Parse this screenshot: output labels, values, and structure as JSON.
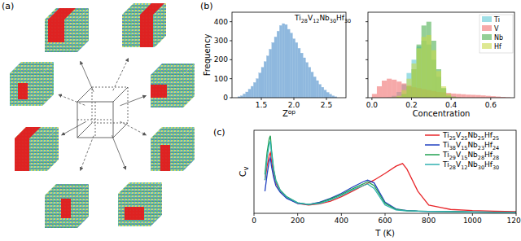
{
  "panel_labels": [
    "(a)",
    "(b)",
    "(c)"
  ],
  "chart_data": [
    {
      "type": "histogram",
      "title": "Ti28V12Nb30Hf30",
      "x_label": "Zop",
      "y_label": "Frequency",
      "color": "#8fb8de",
      "bins": [
        1.14,
        1.18,
        1.22,
        1.26,
        1.3,
        1.34,
        1.38,
        1.42,
        1.46,
        1.5,
        1.54,
        1.58,
        1.62,
        1.66,
        1.7,
        1.74,
        1.78,
        1.82,
        1.86,
        1.9,
        1.94,
        1.98,
        2.02,
        2.06,
        2.1,
        2.14,
        2.18,
        2.22,
        2.26,
        2.3,
        2.34,
        2.38,
        2.42,
        2.46,
        2.5,
        2.54,
        2.58,
        2.62,
        2.66
      ],
      "values": [
        5,
        10,
        20,
        30,
        45,
        60,
        80,
        100,
        130,
        160,
        190,
        220,
        255,
        290,
        320,
        350,
        380,
        390,
        385,
        360,
        340,
        310,
        290,
        260,
        235,
        210,
        185,
        160,
        135,
        110,
        90,
        70,
        55,
        40,
        28,
        18,
        10,
        5
      ],
      "xlim": [
        1.05,
        2.8
      ],
      "xticks": [
        1.5,
        {
          "value": 2,
          "label": "2.0"
        },
        2.5
      ],
      "ylim": [
        0,
        450
      ],
      "yticks": [
        0,
        100,
        200,
        300,
        400
      ]
    },
    {
      "type": "histogram",
      "x_label": "Concentration",
      "legend": "upper right",
      "tick_labels": "x",
      "bins": [
        0,
        0.025,
        0.05,
        0.075,
        0.1,
        0.125,
        0.15,
        0.175,
        0.2,
        0.225,
        0.25,
        0.275,
        0.3,
        0.325,
        0.35,
        0.375,
        0.4,
        0.425,
        0.45,
        0.475,
        0.5,
        0.525,
        0.55,
        0.575,
        0.6,
        0.625,
        0.65,
        0.675,
        0.7
      ],
      "series": [
        {
          "name": "Ti",
          "color": "#5ec8d4",
          "values": [
            0,
            0,
            0,
            2,
            10,
            30,
            70,
            130,
            200,
            270,
            300,
            280,
            200,
            110,
            50,
            20,
            8,
            2,
            0,
            0,
            0,
            0,
            0,
            0,
            0,
            0,
            0,
            0
          ]
        },
        {
          "name": "V",
          "color": "#f07070",
          "values": [
            20,
            60,
            90,
            100,
            95,
            85,
            75,
            65,
            55,
            50,
            45,
            40,
            35,
            30,
            28,
            25,
            22,
            20,
            18,
            16,
            15,
            14,
            12,
            10,
            8,
            6,
            4,
            2
          ]
        },
        {
          "name": "Nb",
          "color": "#4caf50",
          "values": [
            0,
            0,
            0,
            0,
            0,
            5,
            20,
            60,
            150,
            280,
            380,
            400,
            300,
            150,
            50,
            10,
            2,
            0,
            0,
            0,
            0,
            0,
            0,
            0,
            0,
            0,
            0,
            0
          ]
        },
        {
          "name": "Hf",
          "color": "#c8d84a",
          "values": [
            0,
            0,
            0,
            0,
            2,
            10,
            40,
            100,
            180,
            260,
            320,
            330,
            250,
            140,
            60,
            20,
            5,
            1,
            0,
            0,
            0,
            0,
            0,
            0,
            0,
            0,
            0,
            0
          ]
        }
      ],
      "xlim": [
        -0.02,
        0.72
      ],
      "xticks": [
        {
          "value": 0,
          "label": "0.0"
        },
        0.2,
        0.4,
        0.6
      ],
      "ylim": [
        0,
        450
      ],
      "yticks": [
        0,
        100,
        200,
        300,
        400
      ]
    },
    {
      "type": "line",
      "x_label": "T (K)",
      "y_label": "Cv",
      "legend": "upper right",
      "tick_labels": "x",
      "x": [
        50,
        60,
        70,
        75,
        80,
        90,
        100,
        120,
        150,
        200,
        250,
        300,
        350,
        400,
        450,
        500,
        520,
        550,
        600,
        650,
        680,
        700,
        750,
        800,
        900,
        1000,
        1100,
        1200
      ],
      "series": [
        {
          "name": "Ti25V25Nb25Hf25",
          "color": "#e8262a",
          "values": [
            0.6,
            0.85,
            1.05,
            1.1,
            0.95,
            0.7,
            0.55,
            0.4,
            0.28,
            0.18,
            0.15,
            0.17,
            0.22,
            0.3,
            0.4,
            0.5,
            0.54,
            0.6,
            0.72,
            0.85,
            0.9,
            0.8,
            0.4,
            0.15,
            0.07,
            0.05,
            0.04,
            0.03
          ]
        },
        {
          "name": "Ti38V15Nb23Hf24",
          "color": "#2040c0",
          "values": [
            0.4,
            0.7,
            0.95,
            1.0,
            0.85,
            0.65,
            0.5,
            0.38,
            0.27,
            0.18,
            0.16,
            0.2,
            0.27,
            0.36,
            0.47,
            0.57,
            0.6,
            0.55,
            0.2,
            0.08,
            0.06,
            0.05,
            0.04,
            0.035,
            0.03,
            0.025,
            0.02,
            0.02
          ]
        },
        {
          "name": "Ti29V15Nb28Hf28",
          "color": "#20a050",
          "values": [
            0.7,
            1.1,
            1.35,
            1.4,
            1.15,
            0.8,
            0.6,
            0.42,
            0.3,
            0.19,
            0.16,
            0.19,
            0.26,
            0.34,
            0.44,
            0.53,
            0.57,
            0.5,
            0.18,
            0.07,
            0.055,
            0.045,
            0.04,
            0.035,
            0.03,
            0.025,
            0.02,
            0.02
          ]
        },
        {
          "name": "Ti28V12Nb30Hf30",
          "color": "#30b0b0",
          "values": [
            0.6,
            1.0,
            1.25,
            1.3,
            1.1,
            0.78,
            0.58,
            0.41,
            0.29,
            0.19,
            0.16,
            0.18,
            0.24,
            0.32,
            0.42,
            0.5,
            0.53,
            0.45,
            0.15,
            0.06,
            0.05,
            0.045,
            0.04,
            0.035,
            0.03,
            0.025,
            0.02,
            0.02
          ]
        }
      ],
      "xlim": [
        0,
        1200
      ],
      "xticks": [
        0,
        200,
        400,
        600,
        800,
        1000,
        1200
      ],
      "ylim": [
        0,
        1.5
      ]
    }
  ]
}
